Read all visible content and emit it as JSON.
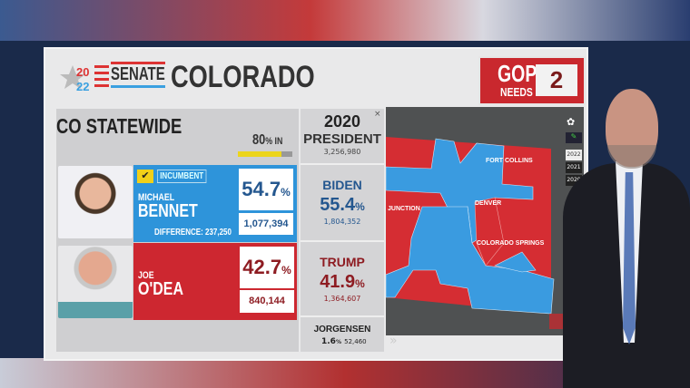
{
  "header": {
    "logo_year_top": "20",
    "logo_year_bottom": "22",
    "race": "SENATE",
    "state": "COLORADO"
  },
  "gop_needs": {
    "party": "GOP",
    "label": "NEEDS",
    "value": "2"
  },
  "statewide": {
    "title": "CO STATEWIDE",
    "pct_in": "80",
    "pct_in_suffix": "% IN",
    "reporting_fraction": 0.8
  },
  "candidates": [
    {
      "first": "MICHAEL",
      "last": "BENNET",
      "badge": "INCUMBENT",
      "winner": true,
      "pct": "54.7",
      "votes": "1,077,394",
      "difference": "DIFFERENCE: 237,250",
      "color": "#2e94da"
    },
    {
      "first": "JOE",
      "last": "O'DEA",
      "pct": "42.7",
      "votes": "840,144",
      "color": "#cd2730"
    }
  ],
  "prior": {
    "year": "2020",
    "office": "PRESIDENT",
    "total": "3,256,980",
    "close": "×",
    "results": [
      {
        "name": "BIDEN",
        "pct": "55.4",
        "votes": "1,804,352",
        "color": "#24578f"
      },
      {
        "name": "TRUMP",
        "pct": "41.9",
        "votes": "1,364,607",
        "color": "#8e1c22"
      },
      {
        "name": "JORGENSEN",
        "pct": "1.6",
        "votes": "52,460"
      }
    ]
  },
  "pct_sign": "%",
  "map": {
    "cities": [
      "FORT COLLINS",
      "DENVER",
      "JUNCTION",
      "COLORADO SPRINGS"
    ],
    "colors": {
      "dem": "#3a9be0",
      "gop": "#d52d33"
    }
  },
  "years": [
    "2022",
    "2021",
    "2020"
  ],
  "expand_icon": "»"
}
